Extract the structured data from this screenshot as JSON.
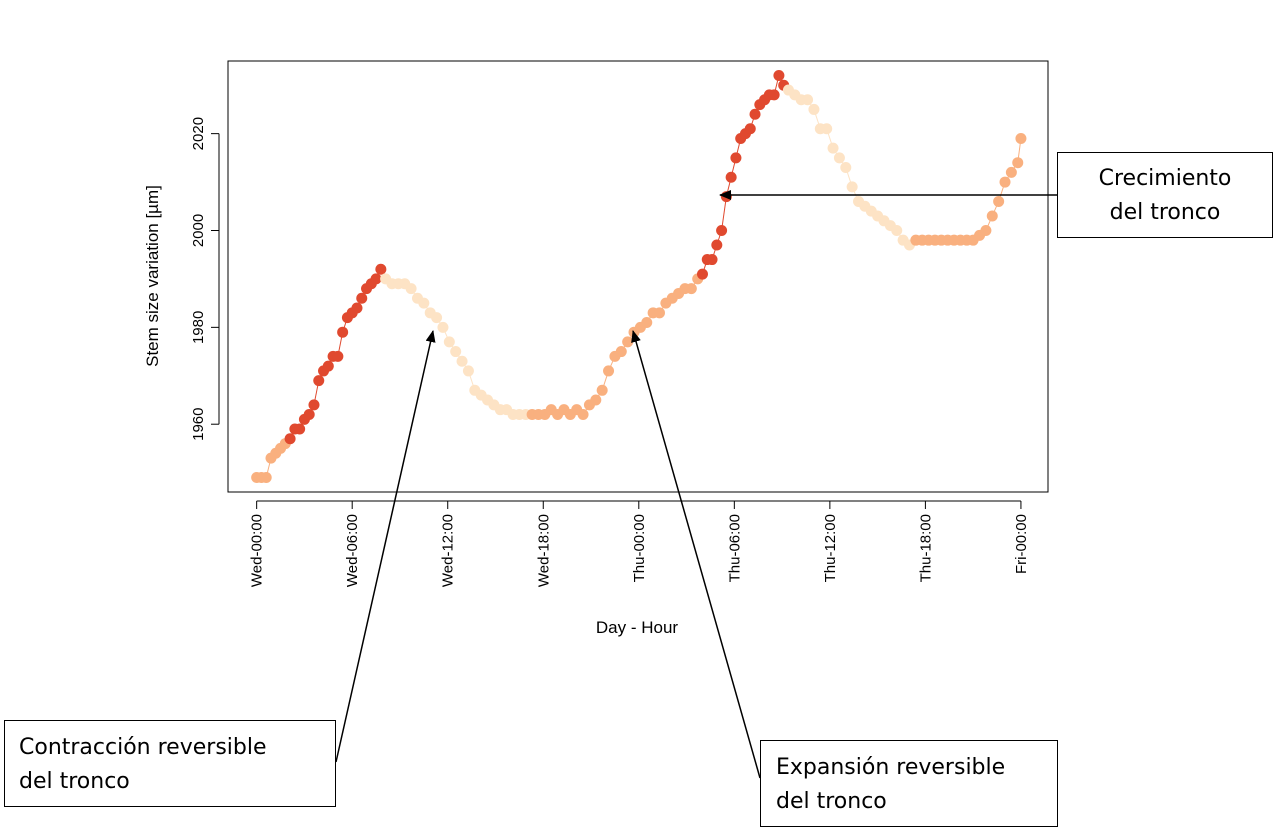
{
  "chart_data": {
    "type": "scatter",
    "title": "",
    "xlabel": "Day - Hour",
    "ylabel": "Stem size variation [µm]",
    "xlim": [
      -1.8,
      49.7
    ],
    "ylim": [
      1946,
      2035
    ],
    "x_ticks": [
      {
        "hour": 0,
        "label": "Wed-00:00"
      },
      {
        "hour": 6,
        "label": "Wed-06:00"
      },
      {
        "hour": 12,
        "label": "Wed-12:00"
      },
      {
        "hour": 18,
        "label": "Wed-18:00"
      },
      {
        "hour": 24,
        "label": "Thu-00:00"
      },
      {
        "hour": 30,
        "label": "Thu-06:00"
      },
      {
        "hour": 36,
        "label": "Thu-12:00"
      },
      {
        "hour": 42,
        "label": "Thu-18:00"
      },
      {
        "hour": 48,
        "label": "Fri-00:00"
      }
    ],
    "y_ticks": [
      1960,
      1980,
      2000,
      2020
    ],
    "grid": false,
    "legend": "none",
    "point_colors": {
      "dark": "#e0492f",
      "medium": "#f9b07f",
      "light": "#fde3c5"
    },
    "series": [
      {
        "color_class": "medium",
        "x": [
          0.0,
          0.3,
          0.6,
          0.9,
          1.2,
          1.5,
          1.8
        ],
        "y": [
          1949,
          1949,
          1949,
          1953,
          1954,
          1955,
          1956
        ]
      },
      {
        "color_class": "dark",
        "x": [
          2.1,
          2.4,
          2.7,
          3.0,
          3.3,
          3.6,
          3.9,
          4.2,
          4.5,
          4.8,
          5.1,
          5.4,
          5.7,
          6.0,
          6.3,
          6.6,
          6.9,
          7.2,
          7.5,
          7.8
        ],
        "y": [
          1957,
          1959,
          1959,
          1961,
          1962,
          1964,
          1969,
          1971,
          1972,
          1974,
          1974,
          1979,
          1982,
          1983,
          1984,
          1986,
          1988,
          1989,
          1990,
          1992
        ]
      },
      {
        "color_class": "light",
        "x": [
          8.1,
          8.5,
          8.9,
          9.3,
          9.7,
          10.1,
          10.5,
          10.9,
          11.3,
          11.7,
          12.1,
          12.5,
          12.9,
          13.3,
          13.7,
          14.1,
          14.5,
          14.9,
          15.3,
          15.7,
          16.1,
          16.5,
          16.9
        ],
        "y": [
          1990,
          1989,
          1989,
          1989,
          1988,
          1986,
          1985,
          1983,
          1982,
          1980,
          1977,
          1975,
          1973,
          1971,
          1967,
          1966,
          1965,
          1964,
          1963,
          1963,
          1962,
          1962,
          1962
        ]
      },
      {
        "color_class": "medium",
        "x": [
          17.3,
          17.7,
          18.1,
          18.5,
          18.9,
          19.3,
          19.7,
          20.1,
          20.5,
          20.9,
          21.3,
          21.7,
          22.1,
          22.5,
          22.9,
          23.3,
          23.7,
          24.1,
          24.5,
          24.9,
          25.3,
          25.7,
          26.1,
          26.5,
          26.9,
          27.3,
          27.7
        ],
        "y": [
          1962,
          1962,
          1962,
          1963,
          1962,
          1963,
          1962,
          1963,
          1962,
          1964,
          1965,
          1967,
          1971,
          1974,
          1975,
          1977,
          1979,
          1980,
          1981,
          1983,
          1983,
          1985,
          1986,
          1987,
          1988,
          1988,
          1990
        ]
      },
      {
        "color_class": "dark",
        "x": [
          28.0,
          28.3,
          28.6,
          28.9,
          29.2,
          29.5,
          29.8,
          30.1,
          30.4,
          30.7,
          31.0,
          31.3,
          31.6,
          31.9,
          32.2,
          32.5,
          32.8,
          33.1
        ],
        "y": [
          1991,
          1994,
          1994,
          1997,
          2000,
          2007,
          2011,
          2015,
          2019,
          2020,
          2021,
          2024,
          2026,
          2027,
          2028,
          2028,
          2032,
          2030
        ]
      },
      {
        "color_class": "light",
        "x": [
          33.4,
          33.8,
          34.2,
          34.6,
          35.0,
          35.4,
          35.8,
          36.2,
          36.6,
          37.0,
          37.4,
          37.8,
          38.2,
          38.6,
          39.0,
          39.4,
          39.8,
          40.2,
          40.6,
          41.0
        ],
        "y": [
          2029,
          2028,
          2027,
          2027,
          2025,
          2021,
          2021,
          2017,
          2015,
          2013,
          2009,
          2006,
          2005,
          2004,
          2003,
          2002,
          2001,
          2000,
          1998,
          1997
        ]
      },
      {
        "color_class": "medium",
        "x": [
          41.4,
          41.8,
          42.2,
          42.6,
          43.0,
          43.4,
          43.8,
          44.2,
          44.6,
          45.0,
          45.4,
          45.8,
          46.2,
          46.6,
          47.0,
          47.4,
          47.8,
          48.0
        ],
        "y": [
          1998,
          1998,
          1998,
          1998,
          1998,
          1998,
          1998,
          1998,
          1998,
          1998,
          1999,
          2000,
          2003,
          2006,
          2010,
          2012,
          2014,
          2019
        ]
      }
    ]
  },
  "annotations": [
    {
      "line1": "Crecimiento",
      "line2": "del tronco"
    },
    {
      "line1": "Contracción reversible",
      "line2": "del tronco"
    },
    {
      "line1": "Expansión reversible",
      "line2": "del tronco"
    }
  ]
}
